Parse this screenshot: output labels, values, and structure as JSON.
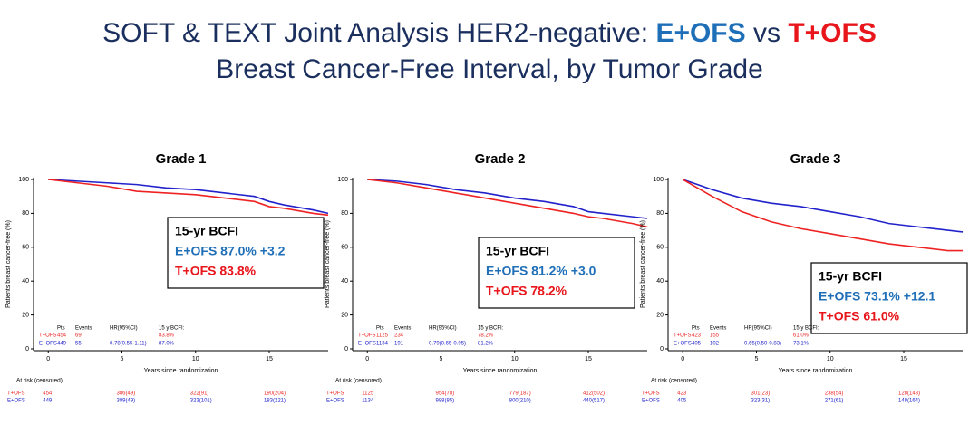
{
  "header": {
    "title_main": "SOFT & TEXT Joint Analysis HER2-negative: ",
    "title_e": "E+OFS",
    "title_vs": " vs ",
    "title_t": "T+OFS",
    "subtitle": "Breast Cancer-Free Interval, by Tumor Grade",
    "title_e_color": "#1f6fb8",
    "title_t_color": "#e8151b"
  },
  "chart_data": [
    {
      "type": "line",
      "title": "Grade 1",
      "x_label": "Years since randomization",
      "y_label": "Patients breast cancer-free (%)",
      "x": [
        0,
        2,
        4,
        6,
        8,
        10,
        12,
        14,
        15,
        16,
        18,
        19
      ],
      "series": [
        {
          "name": "E+OFS",
          "color": "#2222cc",
          "values": [
            100,
            99,
            98,
            97,
            95,
            94,
            92,
            90,
            87,
            85,
            82,
            80
          ]
        },
        {
          "name": "T+OFS",
          "color": "#ee2222",
          "values": [
            100,
            98,
            96,
            93,
            92,
            91,
            89,
            87,
            84,
            83,
            80,
            79
          ]
        }
      ],
      "xlim": [
        -1,
        19
      ],
      "xticks": [
        0,
        5,
        10,
        15
      ],
      "ylim": [
        0,
        100
      ],
      "yticks": [
        0,
        20,
        40,
        60,
        80,
        100
      ],
      "annotation": [
        "15-yr BCFI",
        "E+OFS  87.0%  +3.2",
        "T+OFS  83.8%"
      ],
      "table": {
        "header": [
          "Pts",
          "Events",
          "HR(95%CI)",
          "15 y BCFI:"
        ],
        "rows": [
          {
            "label": "T+OFS",
            "pts": "454",
            "events": "69",
            "bcfi": "83.8%"
          },
          {
            "label": "E+OFS",
            "pts": "449",
            "events": "55",
            "hr": "0.78(0.55-1.11)",
            "bcfi": "87.0%"
          }
        ]
      },
      "at_risk_title": "At risk (censored)",
      "at_risk": [
        {
          "label": "T+OFS",
          "counts": [
            "454",
            "386(49)",
            "322(91)",
            "190(204)"
          ]
        },
        {
          "label": "E+OFS",
          "counts": [
            "449",
            "389(49)",
            "323(101)",
            "183(221)"
          ]
        }
      ]
    },
    {
      "type": "line",
      "title": "Grade 2",
      "x_label": "Years since randomization",
      "y_label": "Patients breast cancer-free (%)",
      "x": [
        0,
        2,
        4,
        6,
        8,
        10,
        12,
        14,
        15,
        16,
        18,
        19
      ],
      "series": [
        {
          "name": "E+OFS",
          "color": "#2222cc",
          "values": [
            100,
            99,
            97,
            94,
            92,
            89,
            87,
            84,
            81,
            80,
            78,
            77
          ]
        },
        {
          "name": "T+OFS",
          "color": "#ee2222",
          "values": [
            100,
            98,
            95,
            92,
            89,
            86,
            83,
            80,
            78,
            77,
            74,
            72
          ]
        }
      ],
      "xlim": [
        -1,
        19
      ],
      "xticks": [
        0,
        5,
        10,
        15
      ],
      "ylim": [
        0,
        100
      ],
      "yticks": [
        0,
        20,
        40,
        60,
        80,
        100
      ],
      "annotation": [
        "15-yr BCFI",
        "E+OFS  81.2%  +3.0",
        "T+OFS  78.2%"
      ],
      "table": {
        "header": [
          "Pts",
          "Events",
          "HR(95%CI)",
          "15 y BCFI:"
        ],
        "rows": [
          {
            "label": "T+OFS",
            "pts": "1125",
            "events": "234",
            "bcfi": "78.2%"
          },
          {
            "label": "E+OFS",
            "pts": "1134",
            "events": "191",
            "hr": "0.79(0.65-0.95)",
            "bcfi": "81.2%"
          }
        ]
      },
      "at_risk_title": "At risk (censored)",
      "at_risk": [
        {
          "label": "T+OFS",
          "counts": [
            "1125",
            "954(78)",
            "779(187)",
            "412(502)"
          ]
        },
        {
          "label": "E+OFS",
          "counts": [
            "1134",
            "988(85)",
            "800(210)",
            "440(517)"
          ]
        }
      ]
    },
    {
      "type": "line",
      "title": "Grade 3",
      "x_label": "Years since randomization",
      "y_label": "Patients breast cancer-free (%)",
      "x": [
        0,
        2,
        4,
        6,
        8,
        10,
        12,
        14,
        15,
        16,
        18,
        19
      ],
      "series": [
        {
          "name": "E+OFS",
          "color": "#2222cc",
          "values": [
            100,
            94,
            89,
            86,
            84,
            81,
            78,
            74,
            73,
            72,
            70,
            69
          ]
        },
        {
          "name": "T+OFS",
          "color": "#ee2222",
          "values": [
            100,
            90,
            81,
            75,
            71,
            68,
            65,
            62,
            61,
            60,
            58,
            58
          ]
        }
      ],
      "xlim": [
        -1,
        19
      ],
      "xticks": [
        0,
        5,
        10,
        15
      ],
      "ylim": [
        0,
        100
      ],
      "yticks": [
        0,
        20,
        40,
        60,
        80,
        100
      ],
      "annotation": [
        "15-yr BCFI",
        "E+OFS  73.1%  +12.1",
        "T+OFS  61.0%"
      ],
      "table": {
        "header": [
          "Pts",
          "Events",
          "HR(95%CI)",
          "15 y BCFI:"
        ],
        "rows": [
          {
            "label": "T+OFS",
            "pts": "423",
            "events": "155",
            "bcfi": "61.0%"
          },
          {
            "label": "E+OFS",
            "pts": "405",
            "events": "102",
            "hr": "0.65(0.50-0.83)",
            "bcfi": "73.1%"
          }
        ]
      },
      "at_risk_title": "At risk (censored)",
      "at_risk": [
        {
          "label": "T+OFS",
          "counts": [
            "423",
            "301(23)",
            "238(54)",
            "128(148)"
          ]
        },
        {
          "label": "E+OFS",
          "counts": [
            "405",
            "323(31)",
            "271(61)",
            "148(164)"
          ]
        }
      ]
    }
  ]
}
